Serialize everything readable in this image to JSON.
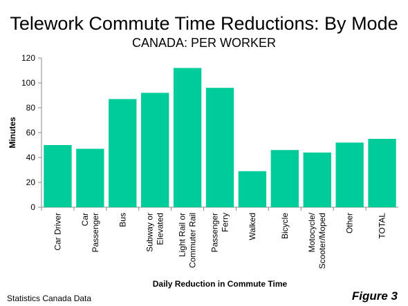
{
  "chart_data": {
    "type": "bar",
    "title": "Telework Commute Time Reductions: By Mode",
    "subtitle": "CANADA: PER WORKER",
    "y_label": "Minutes",
    "x_label": "Daily Reduction in Commute Time",
    "source": "Statistics Canada Data",
    "figure_label": "Figure 3",
    "categories": [
      "Car Driver",
      "Car\nPassenger",
      "Bus",
      "Subway or\nElevated",
      "Light Rail or\nCommuter Rail",
      "Passenger\nFerry",
      "Walked",
      "Bicycle",
      "Motocycle/\nScooter/Moped",
      "Other",
      "TOTAL"
    ],
    "values": [
      50,
      47,
      87,
      92,
      112,
      96,
      29,
      46,
      44,
      52,
      55
    ],
    "color": "#00cc99",
    "ylim": [
      0,
      120
    ],
    "yticks": [
      0,
      20,
      40,
      60,
      80,
      100,
      120
    ],
    "grid": false
  }
}
